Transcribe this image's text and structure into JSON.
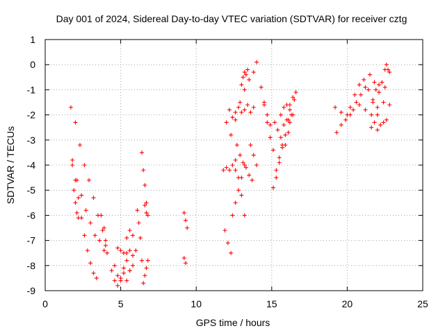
{
  "chart_data": {
    "type": "scatter",
    "title": "Day 001 of 2024, Sidereal Day-to-day VTEC variation (SDTVAR) for receiver cztg",
    "xlabel": "GPS time / hours",
    "ylabel": "SDTVAR / TECUs",
    "xlim": [
      0,
      25
    ],
    "ylim": [
      -9,
      1
    ],
    "xticks": [
      0,
      5,
      10,
      15,
      20,
      25
    ],
    "yticks": [
      1,
      0,
      -1,
      -2,
      -3,
      -4,
      -5,
      -6,
      -7,
      -8,
      -9
    ],
    "grid": true,
    "marker": "+",
    "color": "#ff0000",
    "series": [
      {
        "x": [
          1.7,
          2.0,
          2.3,
          2.6,
          2.9,
          3.2,
          3.5,
          3.8,
          4.0
        ],
        "y": [
          -1.7,
          -2.3,
          -3.2,
          -4.0,
          -4.6,
          -5.3,
          -6.0,
          -6.6,
          -7.2
        ]
      },
      {
        "x": [
          1.8,
          2.1,
          2.4,
          2.7,
          3.0,
          3.3,
          3.6,
          3.9
        ],
        "y": [
          -3.8,
          -4.6,
          -5.2,
          -5.8,
          -6.3,
          -6.8,
          -7.0,
          -7.4
        ]
      },
      {
        "x": [
          1.8,
          2.0,
          2.2,
          2.4,
          2.6,
          2.8,
          3.0,
          3.2,
          3.4
        ],
        "y": [
          -4.0,
          -4.6,
          -5.3,
          -6.1,
          -6.8,
          -7.4,
          -7.9,
          -8.3,
          -8.5
        ]
      },
      {
        "x": [
          1.9,
          2.0,
          2.1,
          2.2
        ],
        "y": [
          -5.0,
          -5.5,
          -5.9,
          -6.1
        ]
      },
      {
        "x": [
          3.7,
          3.9,
          4.0,
          4.1
        ],
        "y": [
          -6.0,
          -6.5,
          -7.0,
          -7.5
        ]
      },
      {
        "x": [
          4.4,
          4.6,
          4.8,
          5.0,
          5.2,
          5.4,
          5.6,
          5.8,
          6.0
        ],
        "y": [
          -8.2,
          -8.0,
          -8.4,
          -8.6,
          -8.1,
          -7.8,
          -8.2,
          -7.6,
          -7.4
        ]
      },
      {
        "x": [
          4.6,
          4.8,
          5.0,
          5.2,
          5.4,
          5.6,
          5.8
        ],
        "y": [
          -8.6,
          -8.8,
          -8.5,
          -8.3,
          -8.6,
          -8.2,
          -8.0
        ]
      },
      {
        "x": [
          4.8,
          5.0,
          5.2,
          5.4,
          5.6
        ],
        "y": [
          -7.3,
          -7.4,
          -7.5,
          -7.5,
          -7.4
        ]
      },
      {
        "x": [
          5.4,
          5.6,
          5.8
        ],
        "y": [
          -6.9,
          -6.6,
          -6.8
        ]
      },
      {
        "x": [
          6.1,
          6.2,
          6.3,
          6.4
        ],
        "y": [
          -5.8,
          -6.3,
          -6.9,
          -7.8
        ]
      },
      {
        "x": [
          6.4,
          6.5,
          6.6,
          6.7
        ],
        "y": [
          -3.5,
          -4.2,
          -4.8,
          -5.5
        ]
      },
      {
        "x": [
          6.5,
          6.6,
          6.7,
          6.8
        ],
        "y": [
          -8.7,
          -8.4,
          -8.1,
          -7.8
        ]
      },
      {
        "x": [
          6.6,
          6.7,
          6.8
        ],
        "y": [
          -5.6,
          -5.9,
          -6.0
        ]
      },
      {
        "x": [
          9.2,
          9.3,
          9.4
        ],
        "y": [
          -5.9,
          -6.2,
          -6.5
        ]
      },
      {
        "x": [
          9.2,
          9.3
        ],
        "y": [
          -7.7,
          -7.9
        ]
      },
      {
        "x": [
          11.8,
          12.0,
          12.2,
          12.4,
          12.6
        ],
        "y": [
          -4.2,
          -4.1,
          -4.2,
          -4.0,
          -4.2
        ]
      },
      {
        "x": [
          11.9,
          12.1,
          12.3
        ],
        "y": [
          -6.6,
          -7.1,
          -7.5
        ]
      },
      {
        "x": [
          12.0,
          12.2,
          12.4,
          12.6,
          12.8,
          13.0,
          13.2,
          13.4,
          13.6,
          13.8
        ],
        "y": [
          -2.3,
          -1.8,
          -2.1,
          -1.9,
          -1.7,
          -1.9,
          -1.8,
          -1.6,
          -1.9,
          -1.7
        ]
      },
      {
        "x": [
          12.3,
          12.6,
          12.9,
          13.2,
          13.5,
          13.8,
          14.0
        ],
        "y": [
          -2.8,
          -2.2,
          -1.5,
          -1.0,
          -0.6,
          -0.3,
          0.1
        ]
      },
      {
        "x": [
          12.4,
          12.6,
          12.8,
          13.0,
          13.2
        ],
        "y": [
          -6.0,
          -5.5,
          -5.0,
          -4.5,
          -4.0
        ]
      },
      {
        "x": [
          12.6,
          12.8,
          13.0,
          13.2
        ],
        "y": [
          -3.8,
          -4.5,
          -5.2,
          -6.0
        ]
      },
      {
        "x": [
          12.7,
          12.9,
          13.1,
          13.3,
          13.5,
          13.7
        ],
        "y": [
          -3.2,
          -3.6,
          -3.9,
          -4.1,
          -4.4,
          -4.6
        ]
      },
      {
        "x": [
          13.0,
          13.1,
          13.2,
          13.3,
          13.4
        ],
        "y": [
          -0.8,
          -0.5,
          -0.3,
          -0.4,
          -0.2
        ]
      },
      {
        "x": [
          13.6,
          13.8,
          14.0
        ],
        "y": [
          -3.2,
          -3.6,
          -4.0
        ]
      },
      {
        "x": [
          14.3,
          14.5,
          14.7,
          14.9,
          15.1
        ],
        "y": [
          -0.9,
          -1.5,
          -2.3,
          -2.9,
          -3.4
        ]
      },
      {
        "x": [
          14.5,
          14.7,
          14.9
        ],
        "y": [
          -1.6,
          -2.0,
          -2.4
        ]
      },
      {
        "x": [
          15.2,
          15.4,
          15.6,
          15.8,
          16.0,
          16.2
        ],
        "y": [
          -2.3,
          -2.6,
          -2.9,
          -2.4,
          -2.2,
          -2.3
        ]
      },
      {
        "x": [
          15.1,
          15.3,
          15.5,
          15.7
        ],
        "y": [
          -4.9,
          -4.2,
          -3.7,
          -3.2
        ]
      },
      {
        "x": [
          15.3,
          15.5,
          15.7,
          15.9,
          16.1
        ],
        "y": [
          -4.5,
          -3.9,
          -3.3,
          -2.8,
          -2.2
        ]
      },
      {
        "x": [
          15.6,
          15.8,
          16.0,
          16.2,
          16.4
        ],
        "y": [
          -2.0,
          -1.7,
          -1.6,
          -1.8,
          -2.0
        ]
      },
      {
        "x": [
          15.9,
          16.1,
          16.3,
          16.5
        ],
        "y": [
          -3.2,
          -2.7,
          -2.0,
          -1.4
        ]
      },
      {
        "x": [
          16.2,
          16.4,
          16.6
        ],
        "y": [
          -1.6,
          -1.3,
          -1.1
        ]
      },
      {
        "x": [
          19.2,
          19.6,
          20.0,
          20.4,
          20.8,
          21.2,
          21.6,
          22.0,
          22.4,
          22.8
        ],
        "y": [
          -1.7,
          -1.9,
          -2.0,
          -1.8,
          -1.6,
          -1.8,
          -2.0,
          -1.7,
          -1.5,
          -1.6
        ]
      },
      {
        "x": [
          19.3,
          19.6,
          19.9,
          20.2
        ],
        "y": [
          -2.7,
          -2.4,
          -2.2,
          -2.0
        ]
      },
      {
        "x": [
          20.2,
          20.5,
          20.8,
          21.1,
          21.4,
          21.7,
          22.0
        ],
        "y": [
          -1.7,
          -1.2,
          -0.8,
          -0.6,
          -1.0,
          -1.5,
          -2.0
        ]
      },
      {
        "x": [
          20.6,
          20.9,
          21.2,
          21.5,
          21.8,
          22.1
        ],
        "y": [
          -1.5,
          -1.2,
          -0.9,
          -0.4,
          -0.7,
          -1.1
        ]
      },
      {
        "x": [
          21.6,
          21.8,
          22.0,
          22.2,
          22.4,
          22.6
        ],
        "y": [
          -2.5,
          -2.3,
          -2.6,
          -2.4,
          -2.3,
          -2.2
        ]
      },
      {
        "x": [
          21.7,
          21.9,
          22.1,
          22.3,
          22.5
        ],
        "y": [
          -1.4,
          -1.0,
          -0.8,
          -0.7,
          -0.9
        ]
      },
      {
        "x": [
          22.5,
          22.6,
          22.7,
          22.8
        ],
        "y": [
          -0.2,
          0.0,
          -0.2,
          -0.3
        ]
      }
    ]
  }
}
